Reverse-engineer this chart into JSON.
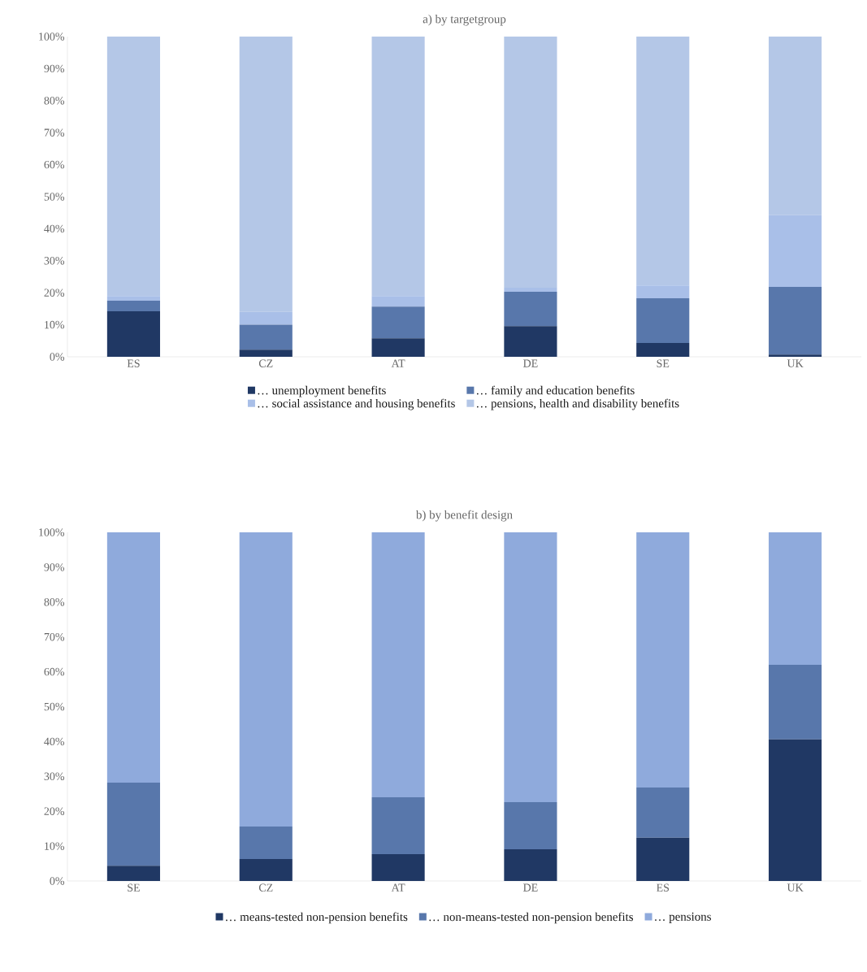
{
  "chart_data": [
    {
      "type": "bar",
      "title": "a) by targetgroup",
      "stacked": true,
      "categories": [
        "ES",
        "CZ",
        "AT",
        "DE",
        "SE",
        "UK"
      ],
      "series": [
        {
          "name": "… unemployment benefits",
          "color": "#203864",
          "values": [
            14.2,
            2.2,
            5.8,
            9.6,
            4.3,
            0.7
          ]
        },
        {
          "name": "… family and education benefits",
          "color": "#5877ab",
          "values": [
            3.3,
            7.8,
            9.9,
            10.7,
            14.0,
            21.1
          ]
        },
        {
          "name": "… social assistance and housing benefits",
          "color": "#a9bfe8",
          "values": [
            1.5,
            4.0,
            3.3,
            1.3,
            4.0,
            22.4
          ]
        },
        {
          "name": "… pensions, health and disability benefits",
          "color": "#b4c7e7",
          "values": [
            81.0,
            86.0,
            81.0,
            78.4,
            77.7,
            55.8
          ]
        }
      ],
      "ylim": [
        0,
        100
      ],
      "yticks": [
        {
          "value": 0,
          "label": "0%"
        },
        {
          "value": 10,
          "label": "10%"
        },
        {
          "value": 20,
          "label": "20%"
        },
        {
          "value": 30,
          "label": "30%"
        },
        {
          "value": 40,
          "label": "40%"
        },
        {
          "value": 50,
          "label": "50%"
        },
        {
          "value": 60,
          "label": "60%"
        },
        {
          "value": 70,
          "label": "70%"
        },
        {
          "value": 80,
          "label": "80%"
        },
        {
          "value": 90,
          "label": "90%"
        },
        {
          "value": 100,
          "label": "100%"
        }
      ],
      "legend": "bottom"
    },
    {
      "type": "bar",
      "title": "b) by benefit design",
      "stacked": true,
      "categories": [
        "SE",
        "CZ",
        "AT",
        "DE",
        "ES",
        "UK"
      ],
      "series": [
        {
          "name": "… means-tested non-pension benefits",
          "color": "#203864",
          "values": [
            4.4,
            6.3,
            7.7,
            9.1,
            12.4,
            40.6
          ]
        },
        {
          "name": "… non-means-tested non-pension benefits",
          "color": "#5877ab",
          "values": [
            23.8,
            9.3,
            16.3,
            13.5,
            14.4,
            21.4
          ]
        },
        {
          "name": "… pensions",
          "color": "#8faadc",
          "values": [
            71.8,
            84.4,
            76.0,
            77.4,
            73.2,
            38.0
          ]
        }
      ],
      "ylim": [
        0,
        100
      ],
      "yticks": [
        {
          "value": 0,
          "label": "0%"
        },
        {
          "value": 10,
          "label": "10%"
        },
        {
          "value": 20,
          "label": "20%"
        },
        {
          "value": 30,
          "label": "30%"
        },
        {
          "value": 40,
          "label": "40%"
        },
        {
          "value": 50,
          "label": "50%"
        },
        {
          "value": 60,
          "label": "60%"
        },
        {
          "value": 70,
          "label": "70%"
        },
        {
          "value": 80,
          "label": "80%"
        },
        {
          "value": 90,
          "label": "90%"
        },
        {
          "value": 100,
          "label": "100%"
        }
      ],
      "legend": "bottom"
    }
  ]
}
